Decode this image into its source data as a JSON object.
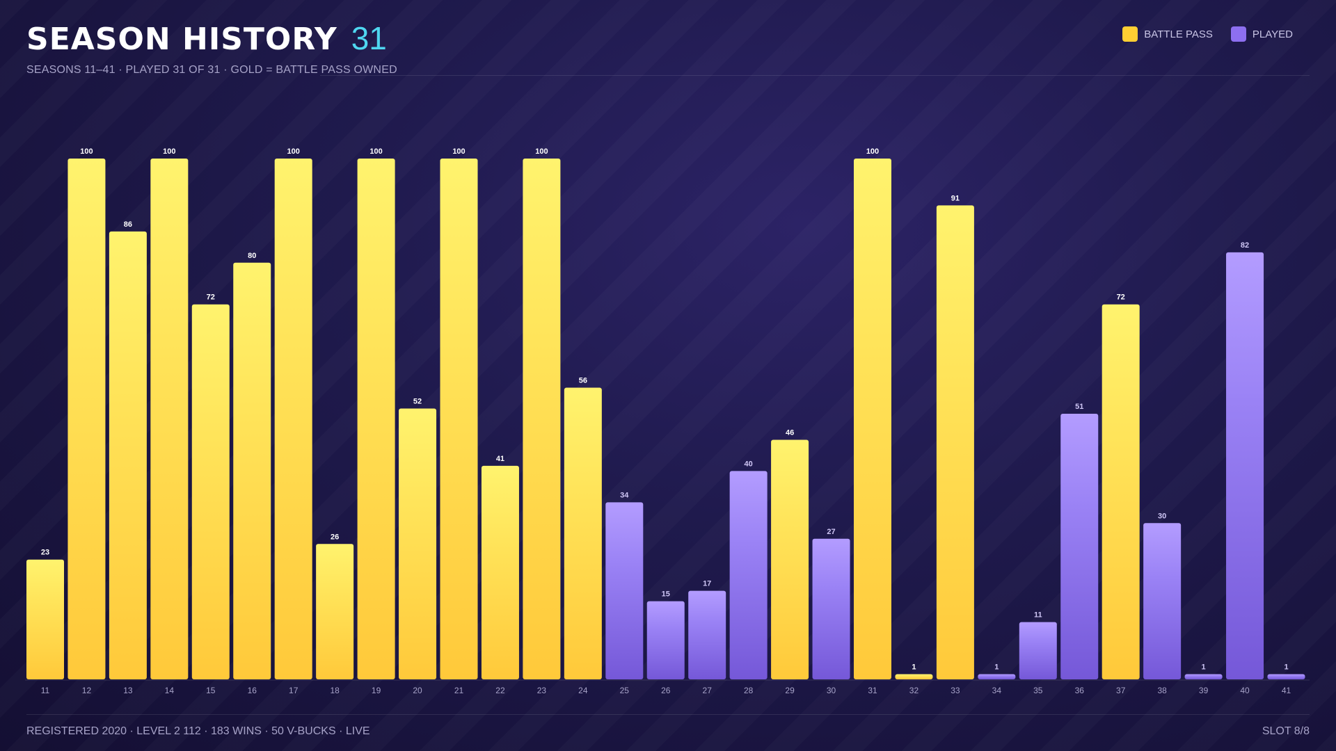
{
  "header": {
    "title": "SEASON HISTORY",
    "count": "31",
    "subtitle": "SEASONS 11–41 · PLAYED 31 OF 31 · GOLD = BATTLE PASS OWNED"
  },
  "legend": {
    "battle_pass_label": "BATTLE PASS",
    "played_label": "PLAYED"
  },
  "footer": {
    "stats": "REGISTERED 2020 · LEVEL 2 112 · 183 WINS · 50 V-BUCKS · LIVE",
    "slot": "SLOT 8/8"
  },
  "colors": {
    "battle_pass": "#ffcf33",
    "played": "#8d6ff0",
    "accent": "#4fd6f0"
  },
  "chart_data": {
    "type": "bar",
    "categories": [
      "11",
      "12",
      "13",
      "14",
      "15",
      "16",
      "17",
      "18",
      "19",
      "20",
      "21",
      "22",
      "23",
      "24",
      "25",
      "26",
      "27",
      "28",
      "29",
      "30",
      "31",
      "32",
      "33",
      "34",
      "35",
      "36",
      "37",
      "38",
      "39",
      "40",
      "41"
    ],
    "values": [
      23,
      100,
      86,
      100,
      72,
      80,
      100,
      26,
      100,
      52,
      100,
      41,
      100,
      56,
      34,
      15,
      17,
      40,
      46,
      27,
      100,
      1,
      91,
      1,
      11,
      51,
      72,
      30,
      1,
      82,
      1
    ],
    "battle_pass": [
      true,
      true,
      true,
      true,
      true,
      true,
      true,
      true,
      true,
      true,
      true,
      true,
      true,
      true,
      false,
      false,
      false,
      false,
      true,
      false,
      true,
      true,
      true,
      false,
      false,
      false,
      true,
      false,
      false,
      false,
      false
    ],
    "ylim": [
      0,
      100
    ],
    "grid": false,
    "legend": "top-right"
  }
}
